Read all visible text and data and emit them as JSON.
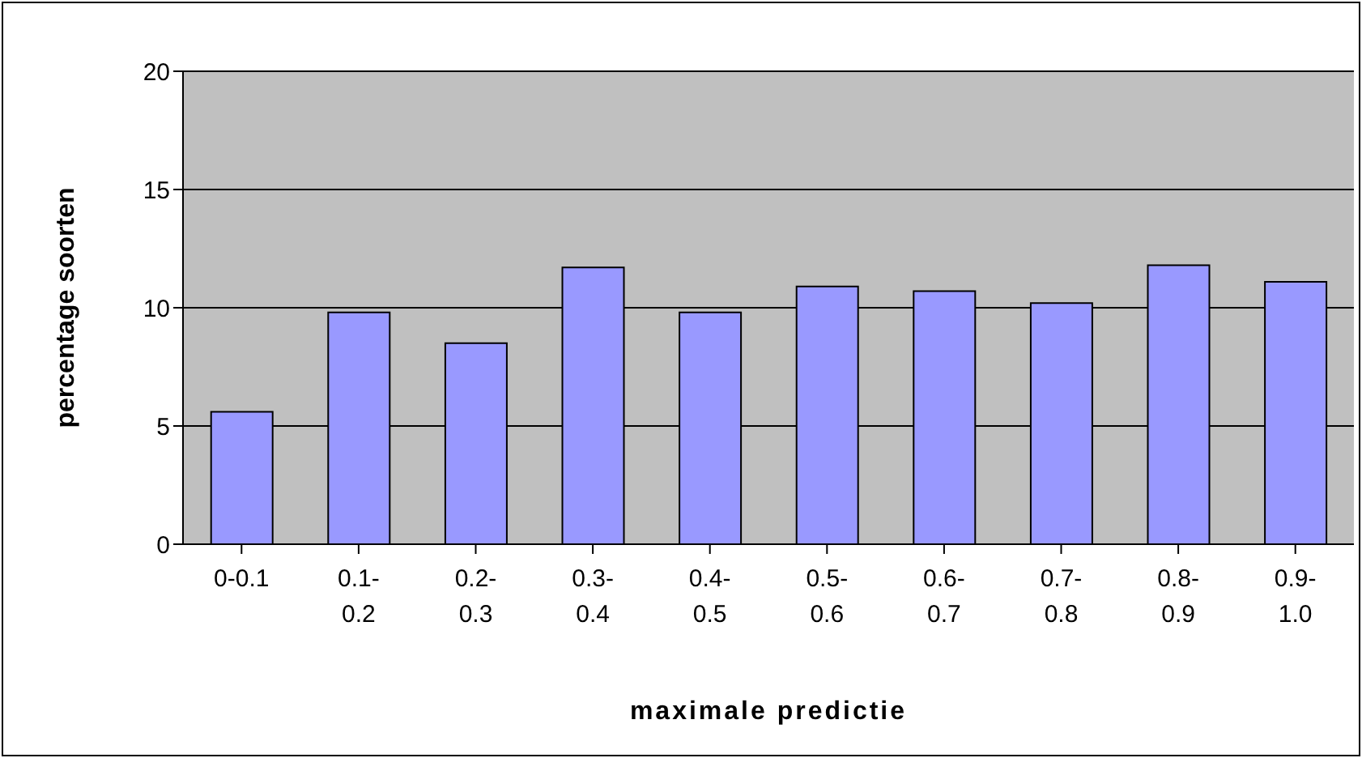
{
  "chart_data": {
    "type": "bar",
    "xlabel": "maximale predictie",
    "ylabel": "percentage soorten",
    "categories": [
      "0-0.1",
      "0.1-0.2",
      "0.2-0.3",
      "0.3-0.4",
      "0.4-0.5",
      "0.5-0.6",
      "0.6-0.7",
      "0.7-0.8",
      "0.8-0.9",
      "0.9-1.0"
    ],
    "values": [
      5.6,
      9.8,
      8.5,
      11.7,
      9.8,
      10.9,
      10.7,
      10.2,
      11.8,
      11.1
    ],
    "color": "#9999ff",
    "ylim": [
      0,
      20
    ],
    "yticks": [
      0,
      5,
      10,
      15,
      20
    ],
    "grid": "y",
    "legend": false
  }
}
